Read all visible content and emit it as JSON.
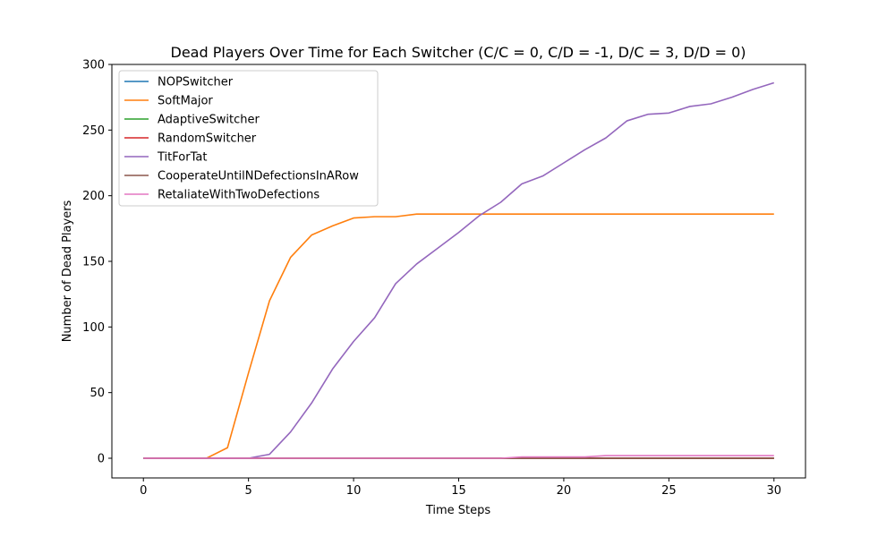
{
  "chart_data": {
    "type": "line",
    "title": "Dead Players Over Time for Each Switcher (C/C = 0, C/D = -1, D/C = 3, D/D = 0)",
    "xlabel": "Time Steps",
    "ylabel": "Number of Dead Players",
    "xlim": [
      -1.5,
      31.5
    ],
    "ylim": [
      -15,
      300
    ],
    "xticks": [
      0,
      5,
      10,
      15,
      20,
      25,
      30
    ],
    "yticks": [
      0,
      50,
      100,
      150,
      200,
      250,
      300
    ],
    "grid": false,
    "legend_position": "top-left",
    "x": [
      0,
      1,
      2,
      3,
      4,
      5,
      6,
      7,
      8,
      9,
      10,
      11,
      12,
      13,
      14,
      15,
      16,
      17,
      18,
      19,
      20,
      21,
      22,
      23,
      24,
      25,
      26,
      27,
      28,
      29,
      30
    ],
    "series": [
      {
        "name": "NOPSwitcher",
        "color": "#1f77b4",
        "values": [
          0,
          0,
          0,
          0,
          0,
          0,
          0,
          0,
          0,
          0,
          0,
          0,
          0,
          0,
          0,
          0,
          0,
          0,
          0,
          0,
          0,
          0,
          0,
          0,
          0,
          0,
          0,
          0,
          0,
          0,
          0
        ]
      },
      {
        "name": "SoftMajor",
        "color": "#ff7f0e",
        "values": [
          0,
          0,
          0,
          0,
          8,
          65,
          120,
          153,
          170,
          177,
          183,
          184,
          184,
          186,
          186,
          186,
          186,
          186,
          186,
          186,
          186,
          186,
          186,
          186,
          186,
          186,
          186,
          186,
          186,
          186,
          186
        ]
      },
      {
        "name": "AdaptiveSwitcher",
        "color": "#2ca02c",
        "values": [
          0,
          0,
          0,
          0,
          0,
          0,
          0,
          0,
          0,
          0,
          0,
          0,
          0,
          0,
          0,
          0,
          0,
          0,
          0,
          0,
          0,
          0,
          0,
          0,
          0,
          0,
          0,
          0,
          0,
          0,
          0
        ]
      },
      {
        "name": "RandomSwitcher",
        "color": "#d62728",
        "values": [
          0,
          0,
          0,
          0,
          0,
          0,
          0,
          0,
          0,
          0,
          0,
          0,
          0,
          0,
          0,
          0,
          0,
          0,
          0,
          0,
          0,
          0,
          0,
          0,
          0,
          0,
          0,
          0,
          0,
          0,
          0
        ]
      },
      {
        "name": "TitForTat",
        "color": "#9467bd",
        "values": [
          0,
          0,
          0,
          0,
          0,
          0,
          3,
          20,
          42,
          68,
          89,
          107,
          133,
          148,
          160,
          172,
          185,
          195,
          209,
          215,
          225,
          235,
          244,
          257,
          262,
          263,
          268,
          270,
          275,
          281,
          286
        ]
      },
      {
        "name": "CooperateUntilNDefectionsInARow",
        "color": "#8c564b",
        "values": [
          0,
          0,
          0,
          0,
          0,
          0,
          0,
          0,
          0,
          0,
          0,
          0,
          0,
          0,
          0,
          0,
          0,
          0,
          0,
          0,
          0,
          0,
          0,
          0,
          0,
          0,
          0,
          0,
          0,
          0,
          0
        ]
      },
      {
        "name": "RetaliateWithTwoDefections",
        "color": "#e377c2",
        "values": [
          0,
          0,
          0,
          0,
          0,
          0,
          0,
          0,
          0,
          0,
          0,
          0,
          0,
          0,
          0,
          0,
          0,
          0,
          1,
          1,
          1,
          1,
          2,
          2,
          2,
          2,
          2,
          2,
          2,
          2,
          2
        ]
      }
    ]
  }
}
